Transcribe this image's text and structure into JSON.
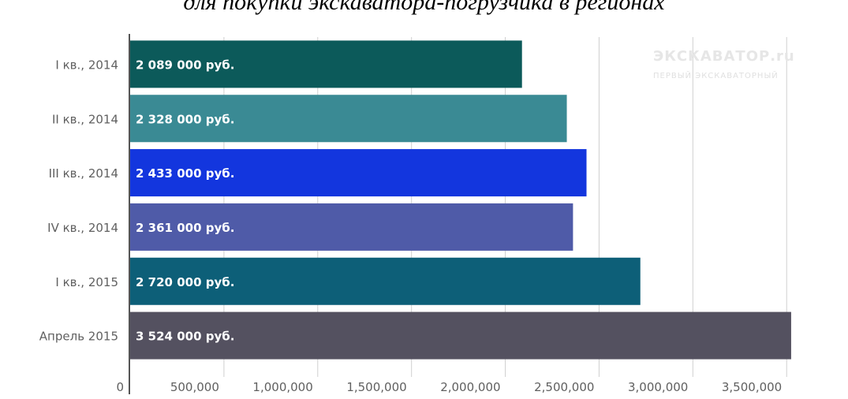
{
  "header_text": "для покупки экскаватора-погрузчика в регионах",
  "watermark": {
    "main": "ЭКСКАВАТОР.ru",
    "sub": "ПЕРВЫЙ ЭКСКАВАТОРНЫЙ"
  },
  "chart_data": {
    "type": "bar",
    "orientation": "horizontal",
    "categories": [
      "I кв., 2014",
      "II кв., 2014",
      "III кв., 2014",
      "IV кв., 2014",
      "I кв., 2015",
      "Апрель 2015"
    ],
    "values": [
      2089000,
      2328000,
      2433000,
      2361000,
      2720000,
      3524000
    ],
    "data_labels": [
      "2 089 000 руб.",
      "2 328 000 руб.",
      "2 433 000 руб.",
      "2 361 000 руб.",
      "2 720 000 руб.",
      "3 524 000 руб."
    ],
    "colors": [
      "#0c5a5a",
      "#3a8a94",
      "#1336de",
      "#4f5ba8",
      "#0d5f78",
      "#545160"
    ],
    "xlim": [
      0,
      3600000
    ],
    "xticks": [
      0,
      500000,
      1000000,
      1500000,
      2000000,
      2500000,
      3000000,
      3500000
    ],
    "xtick_labels": [
      "0",
      "500,000",
      "1,000,000",
      "1,500,000",
      "2,000,000",
      "2,500,000",
      "3,000,000",
      "3,500,000"
    ],
    "grid": true,
    "title": "",
    "xlabel": "",
    "ylabel": ""
  }
}
